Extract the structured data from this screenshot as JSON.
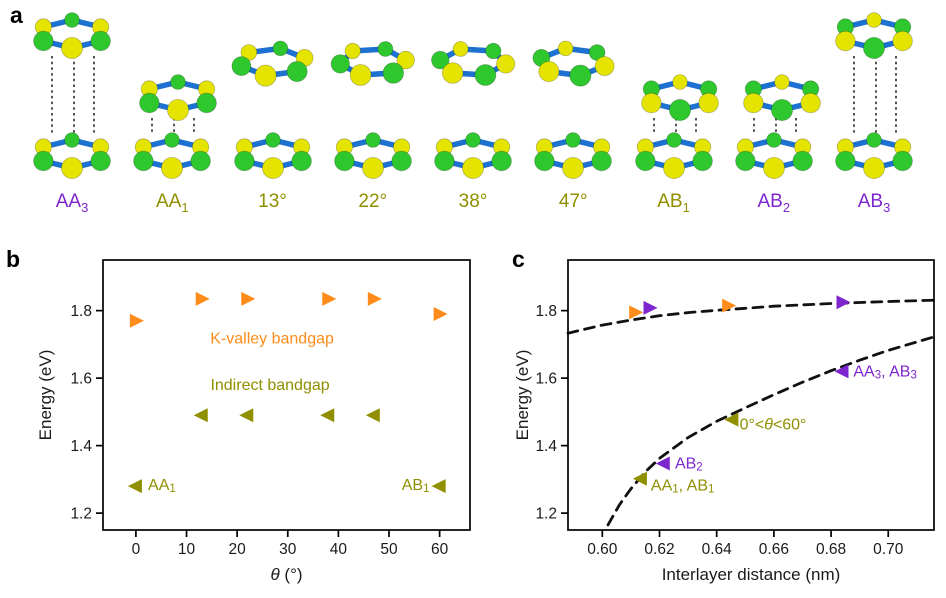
{
  "figure": {
    "background": "#ffffff",
    "colors": {
      "orange": "#ff8c1a",
      "olive": "#8f8f00",
      "purple": "#7d26cd",
      "atom_green": "#2ec82e",
      "atom_yellow": "#e4e400",
      "bond_blue": "#1d71d1",
      "dotted_line": "#2a2a2a",
      "axis": "#000000",
      "text": "#1a1a1a"
    }
  },
  "panels": {
    "a_letter": "a",
    "b_letter": "b",
    "c_letter": "c"
  },
  "panel_a": {
    "structures": [
      {
        "id": "AA3",
        "label_main": "AA",
        "label_sub": "3",
        "color": "#7d26cd",
        "style": "tall",
        "rotation": 0,
        "dotted": true,
        "top_offset": 0
      },
      {
        "id": "AA1",
        "label_main": "AA",
        "label_sub": "1",
        "color": "#8f8f00",
        "style": "medium",
        "rotation": 0,
        "dotted": true,
        "top_offset": 6
      },
      {
        "id": "r13",
        "label_main": "13°",
        "label_sub": "",
        "color": "#8f8f00",
        "style": "separate",
        "rotation": 13,
        "dotted": false,
        "top_offset": 0
      },
      {
        "id": "r22",
        "label_main": "22°",
        "label_sub": "",
        "color": "#8f8f00",
        "style": "separate",
        "rotation": 22,
        "dotted": false,
        "top_offset": 0
      },
      {
        "id": "r38",
        "label_main": "38°",
        "label_sub": "",
        "color": "#8f8f00",
        "style": "separate",
        "rotation": 38,
        "dotted": false,
        "top_offset": 0
      },
      {
        "id": "r47",
        "label_main": "47°",
        "label_sub": "",
        "color": "#8f8f00",
        "style": "separate",
        "rotation": 47,
        "dotted": false,
        "top_offset": 0
      },
      {
        "id": "AB1",
        "label_main": "AB",
        "label_sub": "1",
        "color": "#8f8f00",
        "style": "medium",
        "rotation": 0,
        "dotted": true,
        "top_offset": 6
      },
      {
        "id": "AB2",
        "label_main": "AB",
        "label_sub": "2",
        "color": "#7d26cd",
        "style": "medium",
        "rotation": 0,
        "dotted": true,
        "top_offset": 8
      },
      {
        "id": "AB3",
        "label_main": "AB",
        "label_sub": "3",
        "color": "#7d26cd",
        "style": "tall",
        "rotation": 0,
        "dotted": true,
        "top_offset": 0
      }
    ]
  },
  "chart_data": [
    {
      "id": "chart-b",
      "type": "scatter",
      "xlabel_segments": [
        {
          "t": "θ",
          "italic": true
        },
        {
          "t": " (°)"
        }
      ],
      "ylabel": "Energy (eV)",
      "xlim": [
        -6.5,
        66
      ],
      "ylim": [
        1.15,
        1.95
      ],
      "xticks": {
        "values": [
          0,
          10,
          20,
          30,
          40,
          50,
          60
        ],
        "labels": [
          "0",
          "10",
          "20",
          "30",
          "40",
          "50",
          "60"
        ]
      },
      "yticks": {
        "values": [
          1.2,
          1.4,
          1.6,
          1.8
        ],
        "labels": [
          "1.2",
          "1.4",
          "1.6",
          "1.8"
        ]
      },
      "grid": false,
      "legend_position": "inline-annotations",
      "curves": [],
      "series": [
        {
          "name": "K-valley bandgap",
          "color": "#ff8c1a",
          "marker": "right",
          "points": [
            [
              0,
              1.77
            ],
            [
              13,
              1.835
            ],
            [
              22,
              1.835
            ],
            [
              38,
              1.835
            ],
            [
              47,
              1.835
            ],
            [
              60,
              1.79
            ]
          ]
        },
        {
          "name": "Indirect bandgap",
          "color": "#8f8f00",
          "marker": "left",
          "points": [
            [
              0,
              1.28
            ],
            [
              13,
              1.49
            ],
            [
              22,
              1.49
            ],
            [
              38,
              1.49
            ],
            [
              47,
              1.49
            ],
            [
              60,
              1.28
            ]
          ]
        }
      ],
      "annotations": [
        {
          "id": "k-valley-bandgap",
          "segments": [
            {
              "t": "K-valley bandgap"
            }
          ],
          "x": 26.9,
          "y": 1.717,
          "anchor": "middle",
          "color": "#ff8c1a"
        },
        {
          "id": "indirect-bandgap",
          "segments": [
            {
              "t": "Indirect bandgap"
            }
          ],
          "x": 26.5,
          "y": 1.58,
          "anchor": "middle",
          "color": "#8f8f00"
        },
        {
          "id": "AA1",
          "segments": [
            {
              "t": "AA"
            },
            {
              "t": "1",
              "sub": true
            }
          ],
          "x": 2.4,
          "y": 1.283,
          "anchor": "start",
          "color": "#8f8f00"
        },
        {
          "id": "AB1",
          "segments": [
            {
              "t": "AB"
            },
            {
              "t": "1",
              "sub": true
            }
          ],
          "x": 58,
          "y": 1.283,
          "anchor": "end",
          "color": "#8f8f00"
        }
      ]
    },
    {
      "id": "chart-c",
      "type": "scatter",
      "xlabel_segments": [
        {
          "t": "Interlayer distance (nm)"
        }
      ],
      "ylabel": "Energy (eV)",
      "xlim": [
        0.588,
        0.716
      ],
      "ylim": [
        1.15,
        1.95
      ],
      "xticks": {
        "values": [
          0.6,
          0.62,
          0.64,
          0.66,
          0.68,
          0.7
        ],
        "labels": [
          "0.60",
          "0.62",
          "0.64",
          "0.66",
          "0.68",
          "0.70"
        ]
      },
      "yticks": {
        "values": [
          1.2,
          1.4,
          1.6,
          1.8
        ],
        "labels": [
          "1.2",
          "1.4",
          "1.6",
          "1.8"
        ]
      },
      "grid": false,
      "curves": [
        {
          "name": "k-valley-trend",
          "color": "#111111",
          "dashed": true,
          "points": [
            [
              0.588,
              1.733
            ],
            [
              0.6,
              1.757
            ],
            [
              0.61,
              1.772
            ],
            [
              0.62,
              1.785
            ],
            [
              0.63,
              1.794
            ],
            [
              0.64,
              1.801
            ],
            [
              0.65,
              1.807
            ],
            [
              0.66,
              1.813
            ],
            [
              0.67,
              1.817
            ],
            [
              0.68,
              1.821
            ],
            [
              0.69,
              1.824
            ],
            [
              0.7,
              1.827
            ],
            [
              0.716,
              1.831
            ]
          ]
        },
        {
          "name": "indirect-trend",
          "color": "#111111",
          "dashed": true,
          "points": [
            [
              0.602,
              1.165
            ],
            [
              0.606,
              1.225
            ],
            [
              0.61,
              1.272
            ],
            [
              0.615,
              1.322
            ],
            [
              0.62,
              1.362
            ],
            [
              0.63,
              1.424
            ],
            [
              0.64,
              1.472
            ],
            [
              0.65,
              1.512
            ],
            [
              0.66,
              1.551
            ],
            [
              0.67,
              1.588
            ],
            [
              0.68,
              1.622
            ],
            [
              0.69,
              1.653
            ],
            [
              0.7,
              1.682
            ],
            [
              0.716,
              1.722
            ]
          ]
        }
      ],
      "series": [
        {
          "name": "k-valley-rotated",
          "color": "#ff8c1a",
          "marker": "right",
          "points": [
            [
              0.6115,
              1.795
            ],
            [
              0.644,
              1.815
            ]
          ]
        },
        {
          "name": "k-valley-aligned",
          "color": "#7d26cd",
          "marker": "right",
          "points": [
            [
              0.6165,
              1.808
            ],
            [
              0.684,
              1.825
            ]
          ]
        },
        {
          "name": "indirect-aligned",
          "color": "#7d26cd",
          "marker": "left",
          "points": [
            [
              0.684,
              1.62
            ],
            [
              0.6215,
              1.347
            ]
          ]
        },
        {
          "name": "indirect-rotated",
          "color": "#8f8f00",
          "marker": "left",
          "points": [
            [
              0.6135,
              1.302
            ],
            [
              0.6455,
              1.477
            ]
          ]
        }
      ],
      "annotations": [
        {
          "id": "AA3-AB3",
          "segments": [
            {
              "t": "AA"
            },
            {
              "t": "3",
              "sub": true
            },
            {
              "t": ", AB"
            },
            {
              "t": "3",
              "sub": true
            }
          ],
          "x": 0.6878,
          "y": 1.62,
          "anchor": "start",
          "color": "#7d26cd"
        },
        {
          "id": "theta-range",
          "segments": [
            {
              "t": "0°<"
            },
            {
              "t": "θ",
              "italic": true
            },
            {
              "t": "<60°"
            }
          ],
          "x": 0.648,
          "y": 1.462,
          "anchor": "start",
          "color": "#8f8f00"
        },
        {
          "id": "AB2",
          "segments": [
            {
              "t": "AB"
            },
            {
              "t": "2",
              "sub": true
            }
          ],
          "x": 0.6254,
          "y": 1.347,
          "anchor": "start",
          "color": "#7d26cd"
        },
        {
          "id": "AA1-AB1",
          "segments": [
            {
              "t": "AA"
            },
            {
              "t": "1",
              "sub": true
            },
            {
              "t": ", AB"
            },
            {
              "t": "1",
              "sub": true
            }
          ],
          "x": 0.617,
          "y": 1.282,
          "anchor": "start",
          "color": "#8f8f00"
        }
      ]
    }
  ]
}
